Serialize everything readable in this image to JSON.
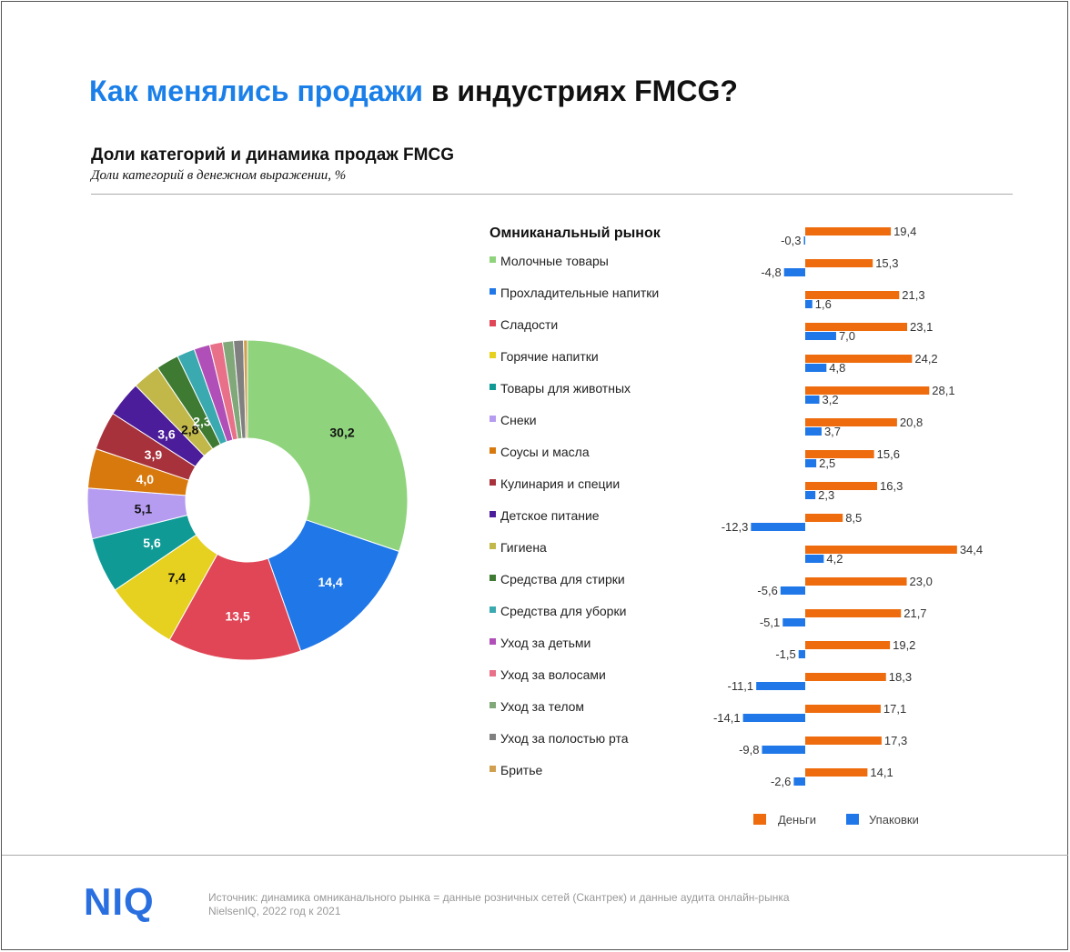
{
  "header": {
    "title_highlight": "Как менялись продажи",
    "title_rest": " в индустриях FMCG?"
  },
  "section": {
    "subtitle": "Доли категорий и динамика продаж FMCG",
    "note": "Доли категорий в денежном выражении, %"
  },
  "footer": {
    "logo": "NIQ",
    "source_line1": "Источник: динамика омниканального рынка = данные розничных сетей (Скантрек) и данные аудита онлайн-рынка",
    "source_line2": "NielsenIQ, 2022 год к 2021"
  },
  "chart_data": [
    {
      "type": "pie",
      "subtype": "donut",
      "title": "Доли категорий в денежном выражении, %",
      "categories": [
        "Молочные товары",
        "Прохладительные напитки",
        "Сладости",
        "Горячие напитки",
        "Товары для животных",
        "Снеки",
        "Соусы и масла",
        "Кулинария и специи",
        "Детское питание",
        "Гигиена",
        "Средства для стирки",
        "Средства для уборки",
        "Уход за детьми",
        "Уход за волосами",
        "Уход за телом",
        "Уход за полостью рта",
        "Бритье"
      ],
      "values": [
        30.2,
        14.4,
        13.5,
        7.4,
        5.6,
        5.1,
        4.0,
        3.9,
        3.6,
        2.8,
        2.3,
        1.8,
        1.6,
        1.3,
        1.1,
        1.0,
        0.4
      ],
      "labels": [
        "30,2",
        "14,4",
        "13,5",
        "7,4",
        "5,6",
        "5,1",
        "4,0",
        "3,9",
        "3,6",
        "2,8",
        "2,3",
        "",
        "",
        "",
        "",
        "",
        ""
      ],
      "colors": [
        "#8fd47c",
        "#1f77e8",
        "#e04656",
        "#e6d020",
        "#109a96",
        "#b59cf0",
        "#d8790e",
        "#a8323c",
        "#4c1d9a",
        "#c2b84a",
        "#3e7a32",
        "#3aaab0",
        "#b04fb8",
        "#e87088",
        "#80a878",
        "#808080",
        "#d0a050"
      ],
      "label_colors": [
        "#111",
        "#fff",
        "#fff",
        "#111",
        "#fff",
        "#111",
        "#fff",
        "#fff",
        "#fff",
        "#111",
        "#fff"
      ]
    },
    {
      "type": "bar",
      "orientation": "horizontal",
      "title": "Омниканальный рынок",
      "categories": [
        "Омниканальный рынок",
        "Молочные товары",
        "Прохладительные напитки",
        "Сладости",
        "Горячие напитки",
        "Товары для животных",
        "Снеки",
        "Соусы и масла",
        "Кулинария и специи",
        "Детское питание",
        "Гигиена",
        "Средства для стирки",
        "Средства для уборки",
        "Уход за детьми",
        "Уход за волосами",
        "Уход за телом",
        "Уход за полостью рта",
        "Бритье"
      ],
      "series": [
        {
          "name": "Деньги",
          "color": "#ee6c0d",
          "values": [
            19.4,
            15.3,
            21.3,
            23.1,
            24.2,
            28.1,
            20.8,
            15.6,
            16.3,
            8.5,
            34.4,
            23.0,
            21.7,
            19.2,
            18.3,
            17.1,
            17.3,
            14.1
          ],
          "labels": [
            "19,4",
            "15,3",
            "21,3",
            "23,1",
            "24,2",
            "28,1",
            "20,8",
            "15,6",
            "16,3",
            "8,5",
            "34,4",
            "23,0",
            "21,7",
            "19,2",
            "18,3",
            "17,1",
            "17,3",
            "14,1"
          ]
        },
        {
          "name": "Упаковки",
          "color": "#1f77e8",
          "values": [
            -0.3,
            -4.8,
            1.6,
            7.0,
            4.8,
            3.2,
            3.7,
            2.5,
            2.3,
            -12.3,
            4.2,
            -5.6,
            -5.1,
            -1.5,
            -11.1,
            -14.1,
            -9.8,
            -2.6
          ],
          "labels": [
            "-0,3",
            "-4,8",
            "1,6",
            "7,0",
            "4,8",
            "3,2",
            "3,7",
            "2,5",
            "2,3",
            "-12,3",
            "4,2",
            "-5,6",
            "-5,1",
            "-1,5",
            "-11,1",
            "-14,1",
            "-9,8",
            "-2,6"
          ]
        }
      ],
      "legend_position": "bottom"
    }
  ]
}
